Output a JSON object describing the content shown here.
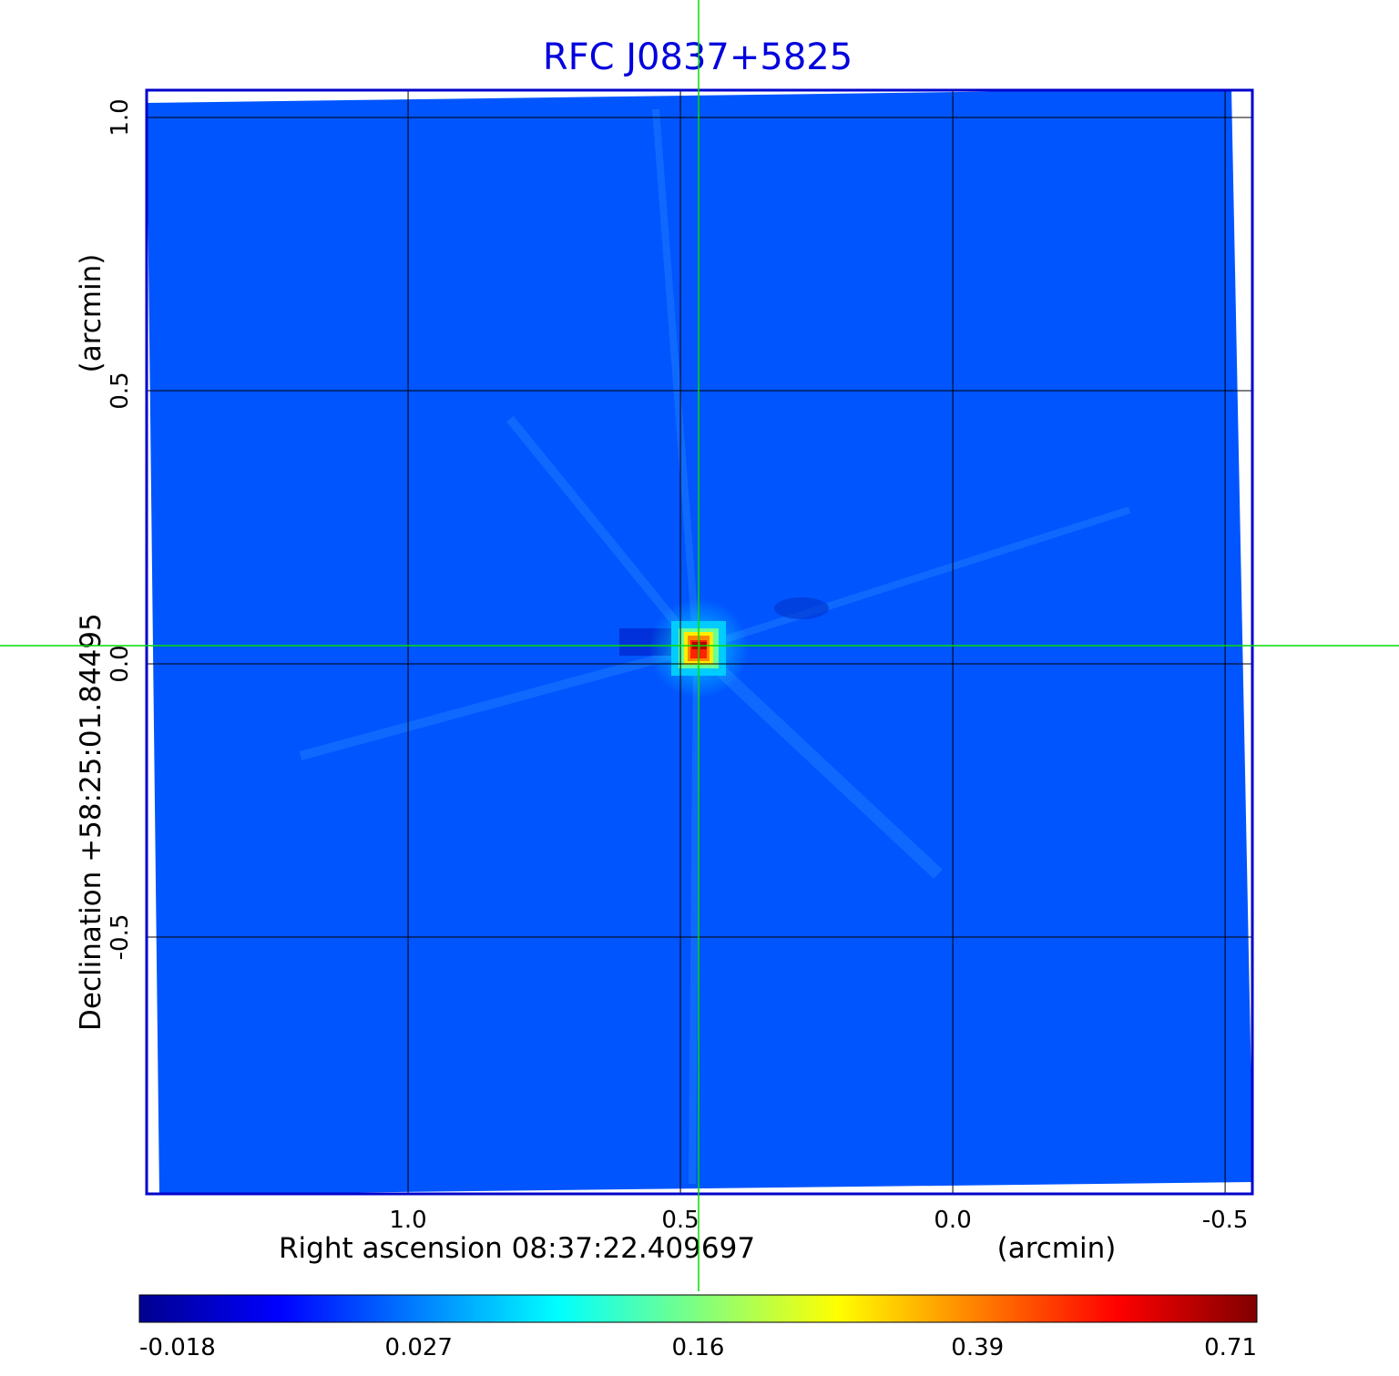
{
  "chart_data": {
    "type": "heatmap",
    "title": "RFC J0837+5825",
    "xlabel": "Right ascension  08:37:22.409697",
    "xunit": "(arcmin)",
    "ylabel": "Declination  +58:25:01.84495",
    "yunit": "(arcmin)",
    "x_ticks": [
      "1.0",
      "0.5",
      "0.0",
      "-0.5"
    ],
    "x_tick_values": [
      1.0,
      0.5,
      0.0,
      -0.5
    ],
    "y_ticks": [
      "1.0",
      "0.5",
      "0.0",
      "-0.5"
    ],
    "y_tick_values": [
      1.0,
      0.5,
      0.0,
      -0.5
    ],
    "xlim": [
      1.48,
      -0.55
    ],
    "ylim": [
      -0.97,
      1.05
    ],
    "grid": true,
    "crosshair": {
      "x": 0.472,
      "y": 0.03
    },
    "source_peak": {
      "x": 0.47,
      "y": 0.03,
      "value": 0.71
    },
    "colorbar": {
      "ticks": [
        "-0.018",
        "0.027",
        "0.16",
        "0.39",
        "0.71"
      ],
      "values": [
        -0.018,
        0.027,
        0.16,
        0.39,
        0.71
      ],
      "colormap": "jet",
      "position": "bottom"
    },
    "colors": {
      "title": "#0000dd",
      "frame": "#0000cc",
      "background_field": "#0055ff",
      "crosshair": "#00dd00",
      "grid": "#000000"
    }
  }
}
